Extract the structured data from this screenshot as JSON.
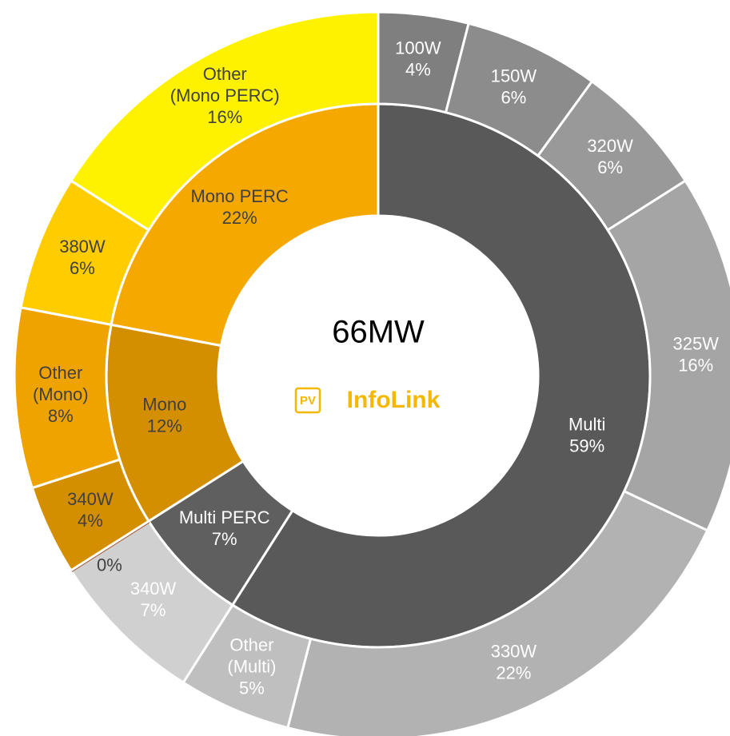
{
  "chart_data": {
    "type": "sunburst",
    "center_label": "66MW",
    "logo": {
      "badge": "PV",
      "text": "InfoLink"
    },
    "inner": {
      "categories": [
        [
          "Multi"
        ],
        [
          "Multi PERC"
        ],
        [
          "Mono"
        ],
        [
          "Mono PERC"
        ]
      ],
      "values": [
        59,
        7,
        12,
        22
      ],
      "value_labels": [
        "59%",
        "7%",
        "12%",
        "22%"
      ],
      "colors": [
        "#595959",
        "#5f5f5f",
        "#d48f00",
        "#f5a800"
      ],
      "label_colors": [
        "#ffffff",
        "#ffffff",
        "#404040",
        "#404040"
      ]
    },
    "outer": {
      "categories": [
        [
          "100W"
        ],
        [
          "150W"
        ],
        [
          "320W"
        ],
        [
          "325W"
        ],
        [
          "330W"
        ],
        [
          "Other",
          "(Multi)"
        ],
        [
          "340W"
        ],
        [],
        [
          "340W"
        ],
        [
          "Other",
          "(Mono)"
        ],
        [
          "380W"
        ],
        [
          "Other",
          "(Mono PERC)"
        ]
      ],
      "values": [
        4,
        6,
        6,
        16,
        22,
        5,
        7,
        0,
        4,
        8,
        6,
        16
      ],
      "value_labels": [
        "4%",
        "6%",
        "6%",
        "16%",
        "22%",
        "5%",
        "7%",
        "0%",
        "4%",
        "8%",
        "6%",
        "16%"
      ],
      "colors": [
        "#7f7f7f",
        "#8c8c8c",
        "#999999",
        "#a5a5a5",
        "#b2b2b2",
        "#bfbfbf",
        "#d0d0d0",
        "#a0522d",
        "#d48f00",
        "#eea300",
        "#ffcc00",
        "#fff200"
      ],
      "label_colors": [
        "#ffffff",
        "#ffffff",
        "#ffffff",
        "#ffffff",
        "#ffffff",
        "#ffffff",
        "#ffffff",
        "#404040",
        "#404040",
        "#404040",
        "#404040",
        "#404040"
      ]
    }
  }
}
